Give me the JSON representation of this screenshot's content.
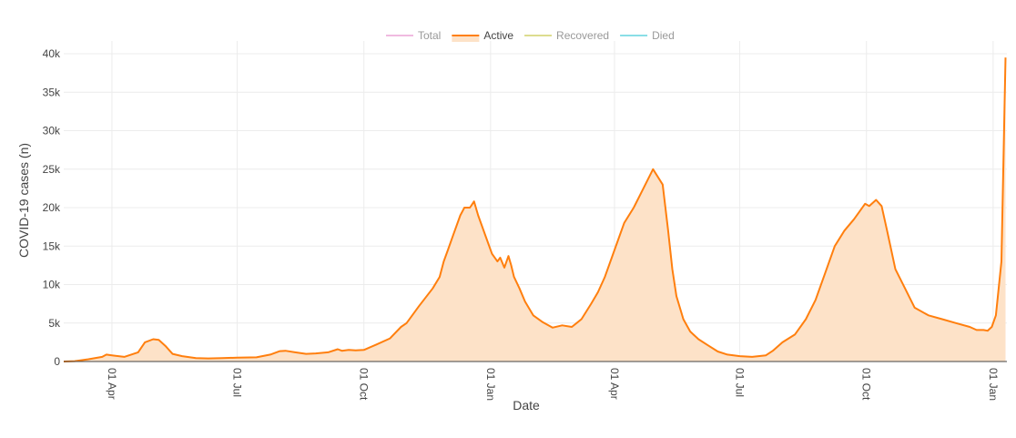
{
  "chart_data": {
    "type": "area",
    "xlabel": "Date",
    "ylabel": "COVID-19 cases (n)",
    "ylim": [
      0,
      40000
    ],
    "y_ticks": [
      0,
      5000,
      10000,
      15000,
      20000,
      25000,
      30000,
      35000,
      40000
    ],
    "y_tick_labels": [
      "0",
      "5k",
      "10k",
      "15k",
      "20k",
      "25k",
      "30k",
      "35k",
      "40k"
    ],
    "x_tick_dates": [
      "2020-04-01",
      "2020-07-01",
      "2020-10-01",
      "2021-01-01",
      "2021-04-01",
      "2021-07-01",
      "2021-10-01",
      "2022-01-01"
    ],
    "x_tick_labels": [
      "01 Apr",
      "01 Jul",
      "01 Oct",
      "01 Jan",
      "01 Apr",
      "01 Jul",
      "01 Oct",
      "01 Jan"
    ],
    "xlim": [
      "2020-02-26",
      "2022-01-11"
    ],
    "grid": true,
    "legend_position": "top-center",
    "legend": [
      {
        "name": "Total",
        "color": "#e377c2",
        "active": false
      },
      {
        "name": "Active",
        "color": "#ff7f0e",
        "active": true
      },
      {
        "name": "Recovered",
        "color": "#bcbd22",
        "active": false
      },
      {
        "name": "Died",
        "color": "#17becf",
        "active": false
      }
    ],
    "series": [
      {
        "name": "Active",
        "color": "#ff7f0e",
        "fill": "#fde2c8",
        "x": [
          "2020-02-26",
          "2020-03-05",
          "2020-03-15",
          "2020-03-25",
          "2020-03-28",
          "2020-04-01",
          "2020-04-10",
          "2020-04-20",
          "2020-04-25",
          "2020-05-01",
          "2020-05-05",
          "2020-05-10",
          "2020-05-15",
          "2020-05-22",
          "2020-06-01",
          "2020-06-10",
          "2020-06-20",
          "2020-07-01",
          "2020-07-15",
          "2020-07-25",
          "2020-08-01",
          "2020-08-05",
          "2020-08-12",
          "2020-08-20",
          "2020-08-27",
          "2020-09-05",
          "2020-09-12",
          "2020-09-15",
          "2020-09-20",
          "2020-09-25",
          "2020-10-01",
          "2020-10-10",
          "2020-10-20",
          "2020-10-28",
          "2020-11-01",
          "2020-11-10",
          "2020-11-20",
          "2020-11-25",
          "2020-11-28",
          "2020-12-01",
          "2020-12-05",
          "2020-12-10",
          "2020-12-13",
          "2020-12-17",
          "2020-12-20",
          "2020-12-23",
          "2020-12-28",
          "2021-01-02",
          "2021-01-06",
          "2021-01-08",
          "2021-01-11",
          "2021-01-14",
          "2021-01-16",
          "2021-01-18",
          "2021-01-22",
          "2021-01-26",
          "2021-02-01",
          "2021-02-08",
          "2021-02-15",
          "2021-02-22",
          "2021-03-01",
          "2021-03-08",
          "2021-03-15",
          "2021-03-20",
          "2021-03-25",
          "2021-04-01",
          "2021-04-08",
          "2021-04-15",
          "2021-04-22",
          "2021-04-29",
          "2021-05-06",
          "2021-05-10",
          "2021-05-13",
          "2021-05-16",
          "2021-05-21",
          "2021-05-26",
          "2021-06-01",
          "2021-06-08",
          "2021-06-15",
          "2021-06-22",
          "2021-07-01",
          "2021-07-10",
          "2021-07-20",
          "2021-07-25",
          "2021-08-01",
          "2021-08-10",
          "2021-08-18",
          "2021-08-25",
          "2021-09-01",
          "2021-09-08",
          "2021-09-15",
          "2021-09-22",
          "2021-09-26",
          "2021-09-30",
          "2021-10-03",
          "2021-10-08",
          "2021-10-12",
          "2021-10-16",
          "2021-10-22",
          "2021-10-29",
          "2021-11-05",
          "2021-11-15",
          "2021-11-25",
          "2021-12-05",
          "2021-12-15",
          "2021-12-20",
          "2021-12-25",
          "2021-12-28",
          "2021-12-31",
          "2022-01-03",
          "2022-01-07",
          "2022-01-10"
        ],
        "values": [
          0,
          50,
          300,
          600,
          900,
          800,
          600,
          1200,
          2500,
          2900,
          2800,
          2000,
          1000,
          700,
          450,
          400,
          450,
          500,
          550,
          900,
          1350,
          1400,
          1200,
          1000,
          1050,
          1200,
          1600,
          1400,
          1500,
          1450,
          1500,
          2200,
          3000,
          4500,
          5000,
          7200,
          9500,
          11000,
          13000,
          14500,
          16500,
          19000,
          20000,
          20000,
          20800,
          19000,
          16500,
          14000,
          13000,
          13500,
          12200,
          13700,
          12500,
          11000,
          9500,
          7800,
          6000,
          5100,
          4400,
          4700,
          4500,
          5500,
          7500,
          9000,
          11000,
          14500,
          18000,
          20000,
          22500,
          25000,
          23000,
          17000,
          12000,
          8500,
          5500,
          3900,
          2900,
          2100,
          1300,
          900,
          700,
          600,
          800,
          1400,
          2500,
          3500,
          5500,
          8000,
          11500,
          15000,
          17000,
          18500,
          19500,
          20500,
          20200,
          21000,
          20200,
          17000,
          12000,
          9500,
          7000,
          6000,
          5500,
          5000,
          4500,
          4100,
          4100,
          4000,
          4500,
          6000,
          13000,
          39500
        ]
      }
    ]
  }
}
